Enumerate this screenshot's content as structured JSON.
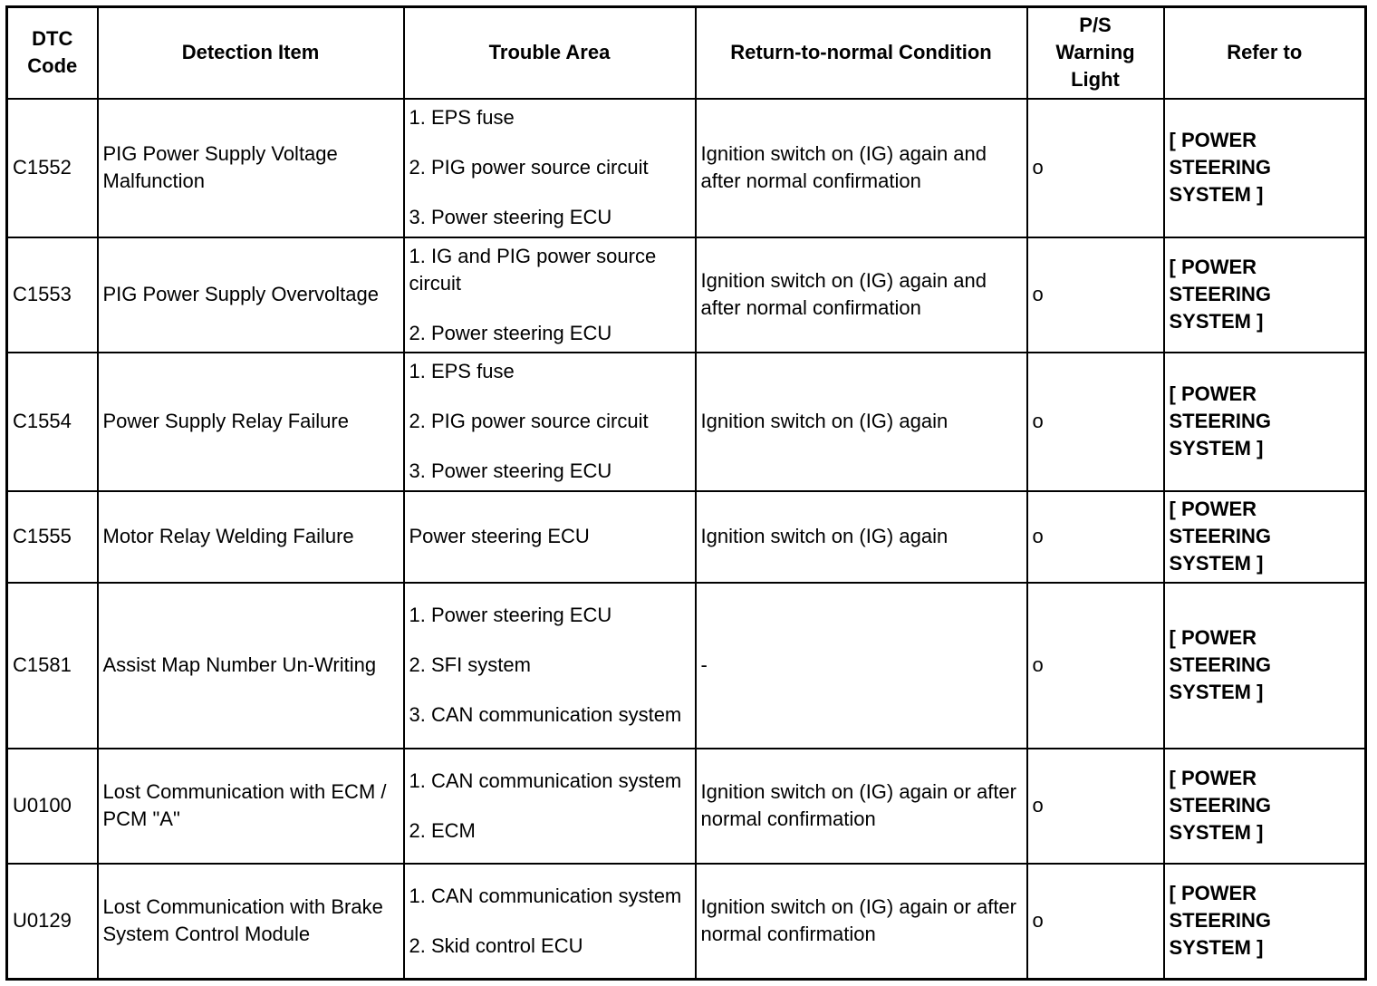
{
  "headers": [
    "DTC Code",
    "Detection Item",
    "Trouble Area",
    "Return-to-normal Condition",
    "P/S Warning Light",
    "Refer to"
  ],
  "rows": [
    {
      "code": "C1552",
      "item": "PIG Power Supply Voltage Malfunction",
      "trouble": [
        "1. EPS fuse",
        "2. PIG power source circuit",
        "3. Power steering ECU"
      ],
      "condition": "Ignition switch on (IG) again and after normal confirmation",
      "light": "o",
      "refer": "[ POWER STEERING SYSTEM ]"
    },
    {
      "code": "C1553",
      "item": "PIG Power Supply Overvoltage",
      "trouble": [
        "1. IG and PIG power source circuit",
        "2. Power steering ECU"
      ],
      "condition": "Ignition switch on (IG) again and after normal confirmation",
      "light": "o",
      "refer": "[ POWER STEERING SYSTEM ]"
    },
    {
      "code": "C1554",
      "item": "Power Supply Relay Failure",
      "trouble": [
        "1. EPS fuse",
        "2. PIG power source circuit",
        "3. Power steering ECU"
      ],
      "condition": "Ignition switch on (IG) again",
      "light": "o",
      "refer": "[ POWER STEERING SYSTEM ]"
    },
    {
      "code": "C1555",
      "item": "Motor Relay Welding Failure",
      "trouble": [
        "Power steering ECU"
      ],
      "condition": "Ignition switch on (IG) again",
      "light": "o",
      "refer": "[ POWER STEERING SYSTEM ]"
    },
    {
      "code": "C1581",
      "item": "Assist Map Number Un-Writing",
      "trouble": [
        "1. Power steering ECU",
        "2. SFI system",
        "3. CAN communication system"
      ],
      "condition": "-",
      "light": "o",
      "refer": "[ POWER STEERING SYSTEM ]"
    },
    {
      "code": "U0100",
      "item": "Lost Communication with ECM / PCM \"A\"",
      "trouble": [
        "1. CAN communication system",
        "2. ECM"
      ],
      "condition": "Ignition switch on (IG) again or after normal confirmation",
      "light": "o",
      "refer": "[ POWER STEERING SYSTEM ]"
    },
    {
      "code": "U0129",
      "item": "Lost Communication with Brake System Control Module",
      "trouble": [
        "1. CAN communication system",
        "2. Skid control ECU"
      ],
      "condition": "Ignition switch on (IG) again or after normal confirmation",
      "light": "o",
      "refer": "[ POWER STEERING SYSTEM ]"
    }
  ]
}
